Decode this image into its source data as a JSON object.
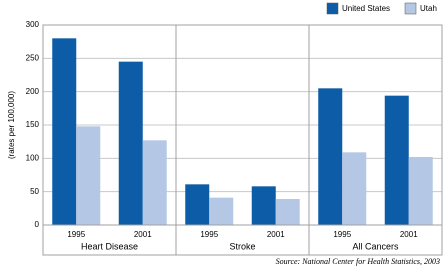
{
  "chart_data": {
    "type": "grouped-bar",
    "groups": [
      "Heart Disease",
      "Stroke",
      "All Cancers"
    ],
    "categories": [
      "1995",
      "2001",
      "1995",
      "2001",
      "1995",
      "2001"
    ],
    "series": [
      {
        "name": "United States",
        "color": "#0d5ca8",
        "values": [
          280,
          245,
          61,
          58,
          205,
          194
        ]
      },
      {
        "name": "Utah",
        "color": "#b4c8e6",
        "values": [
          148,
          127,
          41,
          39,
          109,
          102
        ]
      }
    ],
    "y_label": "(rates per 100,000)",
    "ylim": [
      0,
      300
    ],
    "yticks": [
      0,
      50,
      100,
      150,
      200,
      250,
      300
    ],
    "grid": true,
    "legend": "top-right",
    "source": "Source: National Center for Health Statistics, 2003"
  }
}
